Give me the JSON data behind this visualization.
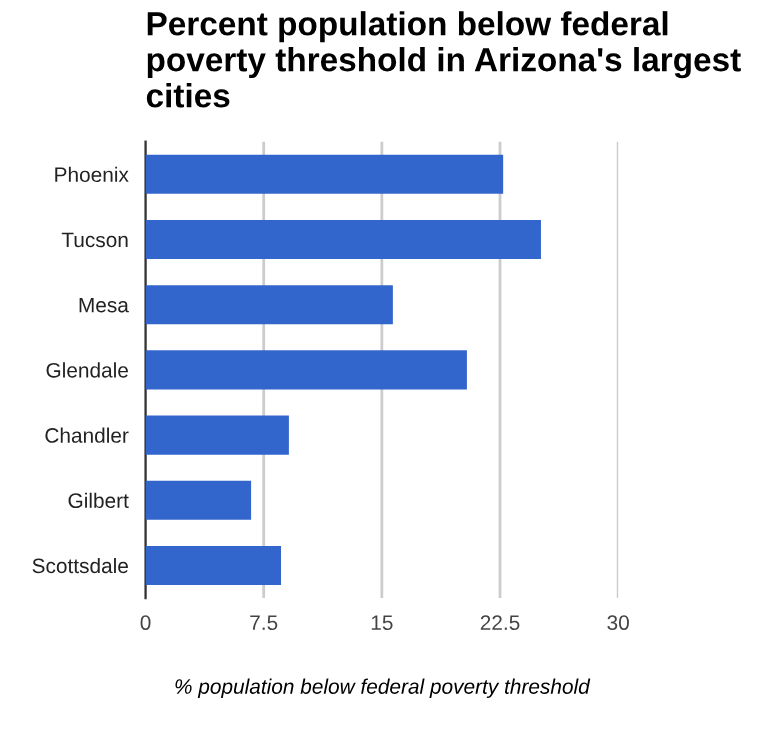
{
  "chart_data": {
    "type": "bar",
    "orientation": "horizontal",
    "title": "Percent population below federal poverty threshold in Arizona's largest cities",
    "xlabel": "% population below federal poverty threshold",
    "categories": [
      "Phoenix",
      "Tucson",
      "Mesa",
      "Glendale",
      "Chandler",
      "Gilbert",
      "Scottsdale"
    ],
    "values": [
      22.7,
      25.1,
      15.7,
      20.4,
      9.1,
      6.7,
      8.6
    ],
    "color": "#3366cc",
    "xlim": [
      0,
      30
    ],
    "xticks": [
      0,
      7.5,
      15,
      22.5,
      30
    ],
    "grid": "x"
  }
}
